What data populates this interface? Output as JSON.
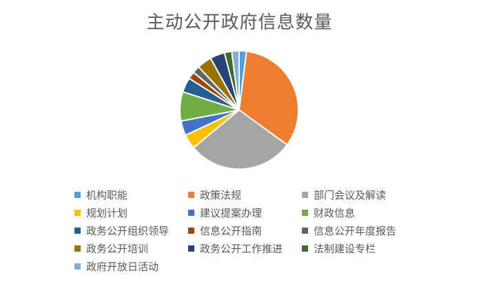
{
  "chart_data": {
    "type": "pie",
    "title": "主动公开政府信息数量",
    "legend_position": "bottom",
    "categories": [
      "机构职能",
      "政策法规",
      "部门会议及解读",
      "规划计划",
      "建议提案办理",
      "财政信息",
      "政务公开组织领导",
      "信息公开指南",
      "信息公开年度报告",
      "政务公开培训",
      "政务公开工作推进",
      "法制建设专栏",
      "政府开放日活动"
    ],
    "values": [
      2,
      33,
      29,
      4,
      4,
      8,
      4,
      2,
      2,
      4,
      4,
      2,
      2
    ],
    "colors": [
      "#5B9BD5",
      "#ED7D31",
      "#A5A5A5",
      "#FFC000",
      "#4472C4",
      "#70AD47",
      "#255E91",
      "#9E480E",
      "#636363",
      "#997300",
      "#264478",
      "#43682B",
      "#7CAFDD"
    ]
  }
}
